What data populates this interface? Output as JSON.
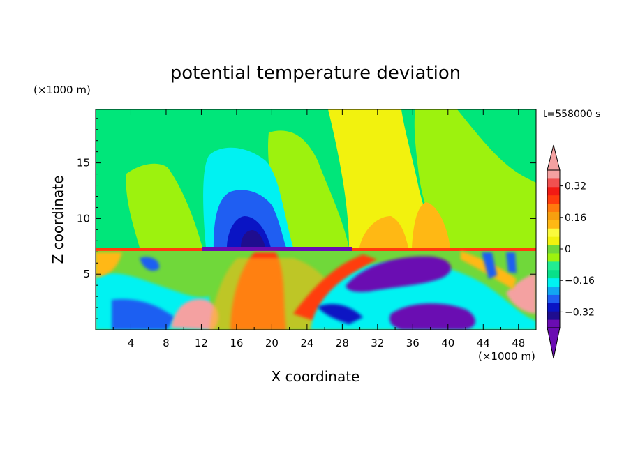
{
  "chart_data": {
    "type": "heatmap",
    "title": "potential temperature deviation",
    "xlabel": "X coordinate",
    "ylabel": "Z coordinate",
    "x_unit": "(×1000 m)",
    "y_unit": "(×1000 m)",
    "time_label": "t=558000 s",
    "xlim": [
      0,
      50
    ],
    "ylim": [
      0,
      19.8
    ],
    "x_ticks": [
      4,
      8,
      12,
      16,
      20,
      24,
      28,
      32,
      36,
      40,
      44,
      48
    ],
    "y_ticks": [
      5,
      10,
      15
    ],
    "colorbar": {
      "levels": [
        -0.4,
        -0.36,
        -0.32,
        -0.28,
        -0.24,
        -0.2,
        -0.16,
        -0.12,
        -0.08,
        -0.04,
        0,
        0.04,
        0.08,
        0.12,
        0.16,
        0.2,
        0.24,
        0.28,
        0.32,
        0.36,
        0.4
      ],
      "tick_labels": [
        "0.32",
        "0.16",
        "0",
        "−0.16",
        "−0.32"
      ],
      "tick_values": [
        0.32,
        0.16,
        0,
        -0.16,
        -0.32
      ],
      "colors": [
        "#6a0cb2",
        "#1f0d8f",
        "#0a14c4",
        "#1f5ef2",
        "#12a6f2",
        "#00f2f2",
        "#08e08a",
        "#22ec92",
        "#9df20e",
        "#70d83a",
        "#f2f20e",
        "#fbfb3c",
        "#ffb814",
        "#f79f0f",
        "#ff7a0d",
        "#ff3c0d",
        "#f21a14",
        "#f05050",
        "#f4a1a1"
      ],
      "extend": "both"
    }
  }
}
